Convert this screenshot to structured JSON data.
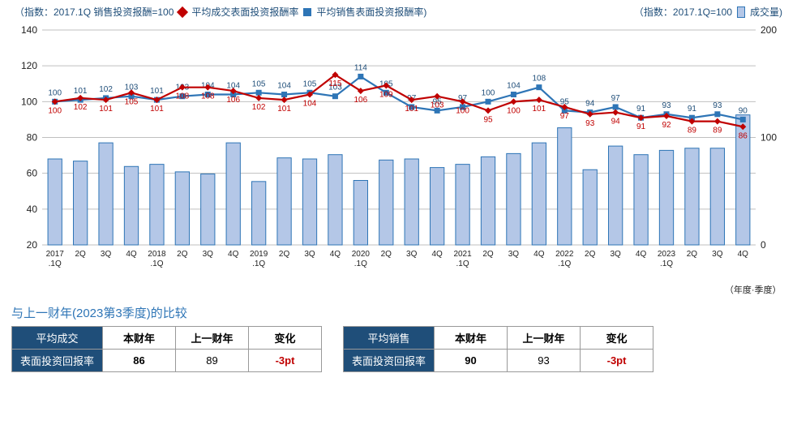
{
  "legend": {
    "left_index_note": "（指数：2017.1Q 销售投资报酬=100",
    "series_a": "平均成交表面投资报酬率",
    "series_b": "平均销售表面投资报酬率)",
    "right_index_note": "（指数：2017.1Q=100",
    "series_c": "成交量)"
  },
  "chart": {
    "left_axis": {
      "min": 20,
      "max": 140,
      "step": 20
    },
    "right_axis": {
      "min": 0,
      "max": 200,
      "step": 100
    },
    "x_labels": [
      "2017\n.1Q",
      "2Q",
      "3Q",
      "4Q",
      "2018\n.1Q",
      "2Q",
      "3Q",
      "4Q",
      "2019\n.1Q",
      "2Q",
      "3Q",
      "4Q",
      "2020\n.1Q",
      "2Q",
      "3Q",
      "4Q",
      "2021\n.1Q",
      "2Q",
      "3Q",
      "4Q",
      "2022\n.1Q",
      "2Q",
      "3Q",
      "4Q",
      "2023\n.1Q",
      "2Q",
      "3Q",
      "4Q"
    ],
    "x_note": "（年度·季度）",
    "colors": {
      "diamond": "#c00000",
      "square": "#2e75b6",
      "bar_fill": "#b4c7e7",
      "bar_border": "#2e75b6",
      "grid": "#bfbfbf",
      "axis_text": "#1f4e79"
    },
    "red_line": [
      100,
      102,
      101,
      105,
      101,
      108,
      108,
      106,
      102,
      101,
      104,
      115,
      106,
      109,
      101,
      103,
      100,
      95,
      100,
      101,
      97,
      93,
      94,
      91,
      92,
      89,
      89,
      86
    ],
    "red_labels": [
      100,
      102,
      101,
      105,
      101,
      108,
      108,
      106,
      102,
      101,
      104,
      115,
      106,
      109,
      101,
      103,
      100,
      95,
      100,
      101,
      97,
      93,
      94,
      91,
      92,
      89,
      89,
      86
    ],
    "blue_line": [
      100,
      101,
      102,
      103,
      101,
      103,
      104,
      104,
      105,
      104,
      105,
      103,
      114,
      105,
      97,
      95,
      97,
      100,
      104,
      108,
      95,
      94,
      97,
      91,
      93,
      91,
      93,
      90
    ],
    "blue_labels": [
      100,
      101,
      102,
      103,
      101,
      103,
      104,
      104,
      105,
      104,
      105,
      103,
      114,
      105,
      97,
      95,
      97,
      100,
      104,
      108,
      95,
      94,
      97,
      91,
      93,
      91,
      93,
      90
    ],
    "bars": [
      80,
      78,
      95,
      73,
      75,
      68,
      66,
      95,
      59,
      81,
      80,
      84,
      60,
      79,
      80,
      72,
      75,
      82,
      85,
      95,
      109,
      70,
      92,
      84,
      88,
      90,
      90,
      121
    ]
  },
  "compare_title": "与上一财年(2023第3季度)的比较",
  "table_a": {
    "row1": [
      "平均成交",
      "本财年",
      "上一财年",
      "变化"
    ],
    "row2_label": "表面投资回报率",
    "this_fy": "86",
    "last_fy": "89",
    "change": "-3pt"
  },
  "table_b": {
    "row1": [
      "平均销售",
      "本财年",
      "上一财年",
      "变化"
    ],
    "row2_label": "表面投资回报率",
    "this_fy": "90",
    "last_fy": "93",
    "change": "-3pt"
  }
}
